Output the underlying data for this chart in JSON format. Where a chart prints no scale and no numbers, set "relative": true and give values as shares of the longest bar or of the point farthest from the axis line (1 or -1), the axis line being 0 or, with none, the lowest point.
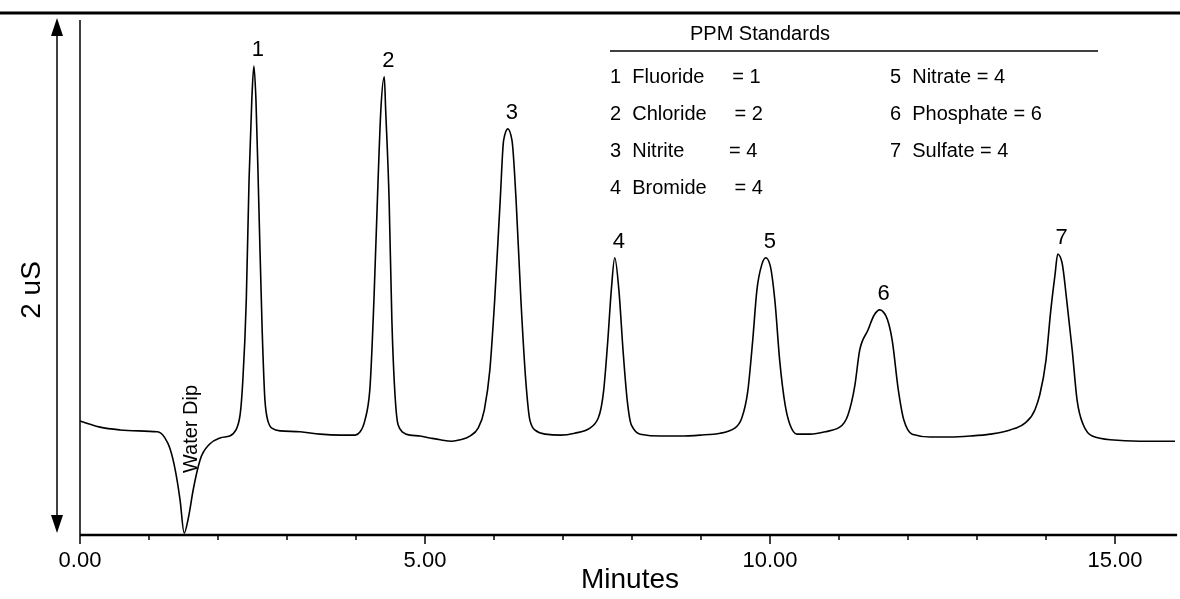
{
  "chart_data": {
    "type": "line",
    "relative": true,
    "xlabel": "Minutes",
    "ylabel": "2 uS",
    "xlim": [
      0,
      15.9
    ],
    "xticks": [
      {
        "value": 0,
        "label": "0.00"
      },
      {
        "value": 1,
        "label": null
      },
      {
        "value": 2,
        "label": null
      },
      {
        "value": 3,
        "label": null
      },
      {
        "value": 4,
        "label": null
      },
      {
        "value": 5,
        "label": "5.00"
      },
      {
        "value": 6,
        "label": null
      },
      {
        "value": 7,
        "label": null
      },
      {
        "value": 8,
        "label": null
      },
      {
        "value": 9,
        "label": null
      },
      {
        "value": 10,
        "label": "10.00"
      },
      {
        "value": 11,
        "label": null
      },
      {
        "value": 12,
        "label": null
      },
      {
        "value": 13,
        "label": null
      },
      {
        "value": 14,
        "label": null
      },
      {
        "value": 15,
        "label": "15.00"
      }
    ],
    "marker": "none",
    "line_style": "solid",
    "series": [
      {
        "color": "#000000",
        "x": [
          0,
          0.29,
          0.58,
          1.12,
          1.23,
          1.3,
          1.38,
          1.45,
          1.51,
          1.57,
          1.64,
          1.74,
          1.88,
          2.03,
          2.17,
          2.26,
          2.32,
          2.36,
          2.41,
          2.45,
          2.49,
          2.52,
          2.55,
          2.59,
          2.64,
          2.68,
          2.72,
          2.78,
          2.9,
          3.19,
          3.48,
          3.77,
          3.99,
          4.06,
          4.13,
          4.2,
          4.26,
          4.32,
          4.36,
          4.41,
          4.43,
          4.48,
          4.52,
          4.57,
          4.61,
          4.67,
          4.78,
          4.93,
          5.07,
          5.22,
          5.39,
          5.51,
          5.65,
          5.77,
          5.86,
          5.94,
          6.01,
          6.09,
          6.14,
          6.2,
          6.26,
          6.32,
          6.39,
          6.46,
          6.52,
          6.59,
          6.74,
          6.96,
          7.17,
          7.39,
          7.51,
          7.59,
          7.65,
          7.7,
          7.75,
          7.81,
          7.87,
          7.93,
          7.99,
          8.12,
          8.41,
          8.7,
          8.99,
          9.28,
          9.49,
          9.59,
          9.68,
          9.75,
          9.81,
          9.88,
          9.94,
          10,
          10.07,
          10.14,
          10.22,
          10.29,
          10.39,
          10.58,
          10.8,
          11.01,
          11.13,
          11.23,
          11.3,
          11.42,
          11.51,
          11.59,
          11.68,
          11.77,
          11.86,
          11.94,
          12.06,
          12.32,
          12.61,
          12.9,
          13.19,
          13.48,
          13.7,
          13.84,
          13.91,
          14,
          14.07,
          14.13,
          14.17,
          14.23,
          14.3,
          14.38,
          14.45,
          14.54,
          14.67,
          14.93,
          15.36,
          15.87
        ],
        "values": [
          0.243,
          0.23,
          0.224,
          0.22,
          0.207,
          0.186,
          0.139,
          0.075,
          0.004,
          0.036,
          0.096,
          0.16,
          0.194,
          0.207,
          0.211,
          0.224,
          0.256,
          0.33,
          0.501,
          0.757,
          0.928,
          1,
          0.928,
          0.714,
          0.437,
          0.288,
          0.245,
          0.228,
          0.222,
          0.22,
          0.215,
          0.213,
          0.213,
          0.22,
          0.245,
          0.309,
          0.501,
          0.757,
          0.906,
          0.977,
          0.906,
          0.714,
          0.458,
          0.288,
          0.235,
          0.22,
          0.213,
          0.211,
          0.207,
          0.203,
          0.2,
          0.203,
          0.211,
          0.228,
          0.267,
          0.352,
          0.501,
          0.714,
          0.842,
          0.866,
          0.842,
          0.714,
          0.501,
          0.33,
          0.245,
          0.224,
          0.215,
          0.213,
          0.217,
          0.228,
          0.249,
          0.309,
          0.416,
          0.522,
          0.591,
          0.522,
          0.394,
          0.288,
          0.235,
          0.215,
          0.211,
          0.211,
          0.213,
          0.217,
          0.228,
          0.249,
          0.309,
          0.416,
          0.522,
          0.576,
          0.591,
          0.576,
          0.501,
          0.373,
          0.277,
          0.235,
          0.215,
          0.215,
          0.22,
          0.23,
          0.256,
          0.319,
          0.394,
          0.437,
          0.469,
          0.48,
          0.467,
          0.416,
          0.309,
          0.245,
          0.215,
          0.209,
          0.209,
          0.211,
          0.215,
          0.224,
          0.239,
          0.267,
          0.299,
          0.373,
          0.48,
          0.554,
          0.599,
          0.582,
          0.501,
          0.394,
          0.288,
          0.235,
          0.211,
          0.203,
          0.2,
          0.2
        ]
      }
    ],
    "annotations": [
      {
        "text": "1",
        "x": 2.52,
        "y": 1
      },
      {
        "text": "2",
        "x": 4.41,
        "y": 0.977
      },
      {
        "text": "3",
        "x": 6.2,
        "y": 0.866
      },
      {
        "text": "4",
        "x": 7.75,
        "y": 0.591
      },
      {
        "text": "5",
        "x": 9.94,
        "y": 0.591
      },
      {
        "text": "6",
        "x": 11.59,
        "y": 0.48
      },
      {
        "text": "7",
        "x": 14.17,
        "y": 0.599
      },
      {
        "text": "Water Dip",
        "x": 1.51,
        "y": 0.004
      },
      "PPM Standards",
      "1  Fluoride     = 1",
      "2  Chloride     = 2",
      "3  Nitrite        = 4",
      "4  Bromide     = 4",
      "5  Nitrate = 4",
      "6  Phosphate = 6",
      "7  Sulfate = 4"
    ]
  }
}
